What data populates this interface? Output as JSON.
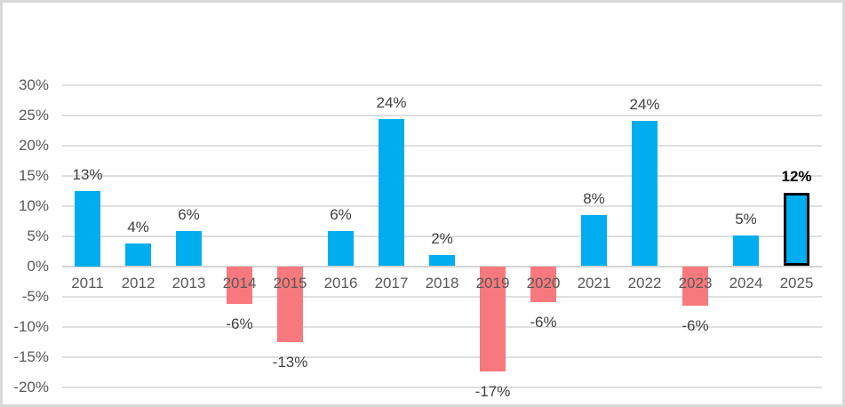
{
  "chart_data": {
    "type": "bar",
    "title": "",
    "xlabel": "",
    "ylabel": "",
    "categories": [
      "2011",
      "2012",
      "2013",
      "2014",
      "2015",
      "2016",
      "2017",
      "2018",
      "2019",
      "2020",
      "2021",
      "2022",
      "2023",
      "2024",
      "2025"
    ],
    "values": [
      12.5,
      3.7,
      5.8,
      -6.3,
      -12.5,
      5.8,
      24.4,
      1.8,
      -17.4,
      -5.9,
      8.5,
      24.1,
      -6.5,
      5.1,
      12.2
    ],
    "labels": [
      "13%",
      "4%",
      "6%",
      "-6%",
      "-13%",
      "6%",
      "24%",
      "2%",
      "-17%",
      "-6%",
      "8%",
      "24%",
      "-6%",
      "5%",
      "12%"
    ],
    "highlighted_category": "2025",
    "y_ticks": [
      "30%",
      "25%",
      "20%",
      "15%",
      "10%",
      "5%",
      "0%",
      "-5%",
      "-10%",
      "-15%",
      "-20%"
    ],
    "y_tick_values": [
      30,
      25,
      20,
      15,
      10,
      5,
      0,
      -5,
      -10,
      -15,
      -20
    ],
    "ylim": [
      -20,
      30
    ],
    "grid": true,
    "legend": null,
    "colors": {
      "positive": "#00AEEF",
      "negative": "#F8797D",
      "highlight_border": "#000000",
      "gridline": "#DFDFDF",
      "zero_line": "#D3D3D3",
      "axis_text": "#595959",
      "label_text": "#404040",
      "frame_border": "#D9D9D9",
      "background": "#FFFFFF"
    }
  }
}
